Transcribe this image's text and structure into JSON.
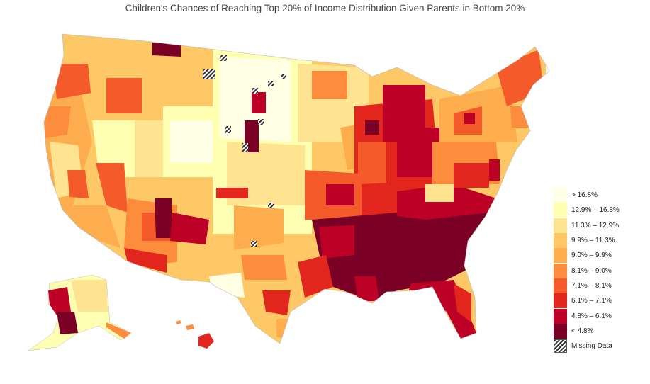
{
  "title": "Children's Chances of Reaching Top 20% of Income Distribution Given Parents in Bottom 20%",
  "legend": {
    "items": [
      {
        "label": "> 16.8%",
        "color": "#ffffe5"
      },
      {
        "label": "12.9% – 16.8%",
        "color": "#ffffb2"
      },
      {
        "label": "11.3% – 12.9%",
        "color": "#fee391"
      },
      {
        "label": "9.9% – 11.3%",
        "color": "#fec867"
      },
      {
        "label": "9.0% – 9.9%",
        "color": "#fdad4e"
      },
      {
        "label": "8.1% – 9.0%",
        "color": "#fd8d3c"
      },
      {
        "label": "7.1% – 8.1%",
        "color": "#f45a2a"
      },
      {
        "label": "6.1% – 7.1%",
        "color": "#e3261d"
      },
      {
        "label": "4.8% – 6.1%",
        "color": "#bd0026"
      },
      {
        "label": "< 4.8%",
        "color": "#7a0026"
      }
    ],
    "missing_label": "Missing Data"
  }
}
